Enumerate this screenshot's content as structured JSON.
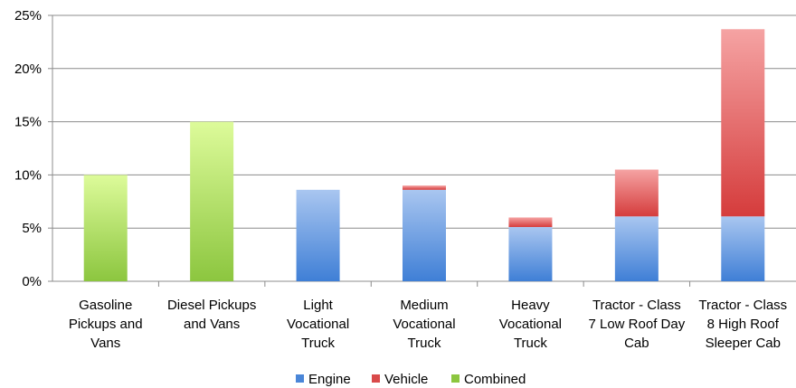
{
  "chart_data": {
    "type": "bar",
    "stacked": true,
    "categories": [
      [
        "Gasoline",
        "Pickups and",
        "Vans"
      ],
      [
        "Diesel Pickups",
        "and Vans"
      ],
      [
        "Light",
        "Vocational",
        "Truck"
      ],
      [
        "Medium",
        "Vocational",
        "Truck"
      ],
      [
        "Heavy",
        "Vocational",
        "Truck"
      ],
      [
        "Tractor - Class",
        "7 Low Roof Day",
        "Cab"
      ],
      [
        "Tractor - Class",
        "8 High Roof",
        "Sleeper Cab"
      ]
    ],
    "series": [
      {
        "name": "Engine",
        "color": "#4a86d8",
        "values": [
          0,
          0,
          8.6,
          8.6,
          5.1,
          6.1,
          6.1
        ]
      },
      {
        "name": "Vehicle",
        "color": "#d94a4a",
        "values": [
          0,
          0,
          0,
          0.4,
          0.9,
          4.4,
          17.6
        ]
      },
      {
        "name": "Combined",
        "color": "#8cc63f",
        "values": [
          10.0,
          15.0,
          0,
          0,
          0,
          0,
          0
        ]
      }
    ],
    "yticks": [
      "0%",
      "5%",
      "10%",
      "15%",
      "20%",
      "25%"
    ],
    "ylim": [
      0,
      25
    ],
    "grid": true,
    "legend": "bottom"
  }
}
